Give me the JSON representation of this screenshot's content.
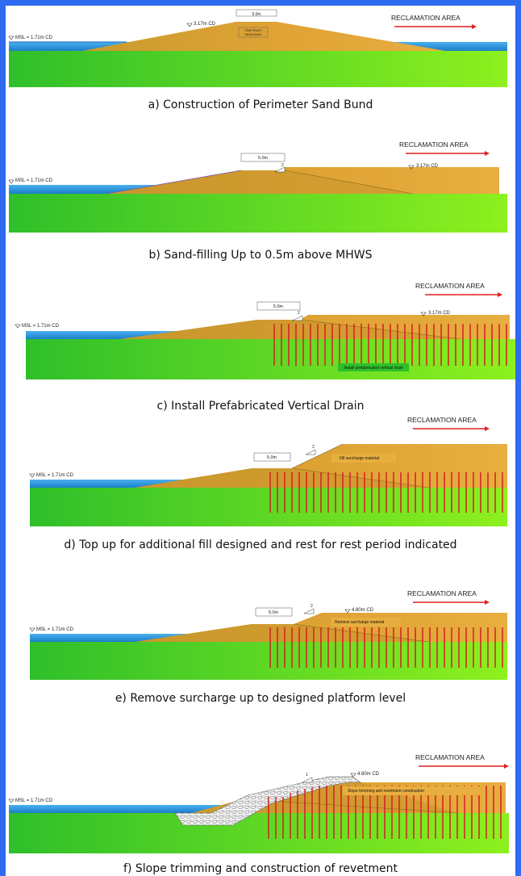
{
  "panels": [
    {
      "id": "a",
      "caption": "a) Construction of Perimeter Sand Bund",
      "area_label": "RECLAMATION AREA",
      "msl_label": "MSL = 1.71m CD",
      "level_label": "3.17m CD",
      "width_label": "5.0m",
      "note": "TEMPORARY SAND BUND"
    },
    {
      "id": "b",
      "caption": "b) Sand-filling Up to 0.5m above MHWS",
      "area_label": "RECLAMATION AREA",
      "msl_label": "MSL = 1.71m CD",
      "level_label": "3.17m CD",
      "width_label": "5.0m",
      "slope_label": "2"
    },
    {
      "id": "c",
      "caption": "c) Install Prefabricated Vertical Drain",
      "area_label": "RECLAMATION AREA",
      "msl_label": "MSL = 1.71m CD",
      "level_label": "3.17m CD",
      "width_label": "5.0m",
      "slope_label": "2",
      "note": "Install prefabricated vertical drain"
    },
    {
      "id": "d",
      "caption": "d) Top up for additional fill designed and rest for rest period indicated",
      "area_label": "RECLAMATION AREA",
      "msl_label": "MSL = 1.71m CD",
      "width_label": "5.0m",
      "slope_label": "2",
      "note": "Fill surcharge material"
    },
    {
      "id": "e",
      "caption": "e) Remove surcharge up to designed platform level",
      "area_label": "RECLAMATION AREA",
      "msl_label": "MSL = 1.71m CD",
      "level_label": "4.80m CD",
      "width_label": "5.0m",
      "slope_label": "2",
      "note": "Remove surcharge material"
    },
    {
      "id": "f",
      "caption": "f) Slope trimming and construction of revetment",
      "area_label": "RECLAMATION AREA",
      "msl_label": "MSL = 1.71m CD",
      "level_label": "4.80m CD",
      "slope_label": "1",
      "note": "Slope trimming and revetment construction"
    }
  ],
  "colors": {
    "water": "#1f8fd8",
    "sand_light": "#e8a93a",
    "sand_dark": "#b8860b",
    "ground_top": "#2fbf2a",
    "ground_bottom": "#8ef01e",
    "drain": "#d22020",
    "arrow": "#e02020",
    "revetment": "#d9d9d9",
    "background": "#2e6bf0"
  }
}
